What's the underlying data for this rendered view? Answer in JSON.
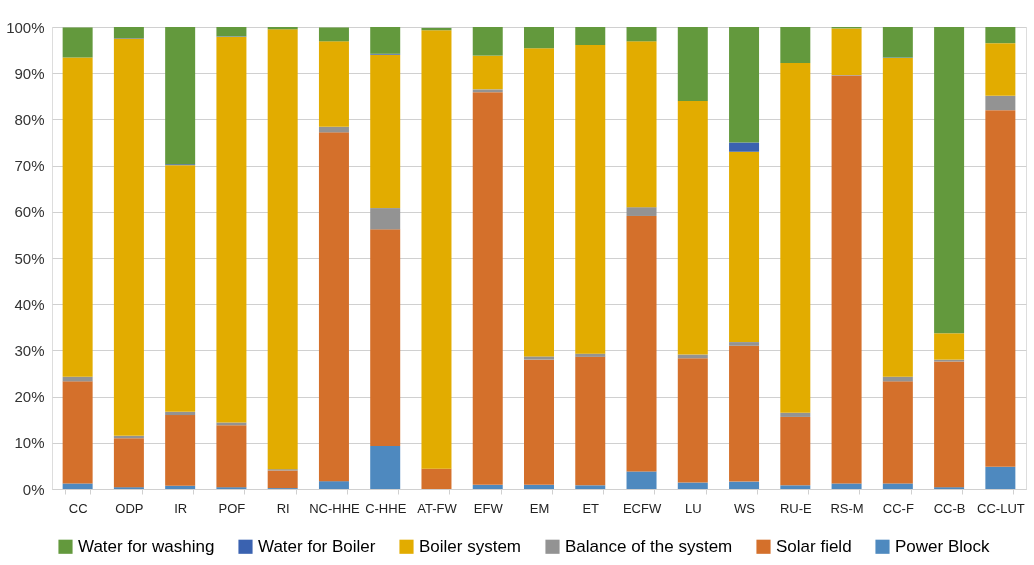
{
  "chart_data": {
    "type": "bar",
    "stacked": true,
    "categories": [
      "CC",
      "ODP",
      "IR",
      "POF",
      "RI",
      "NC-HHE",
      "C-HHE",
      "AT-FW",
      "EFW",
      "EM",
      "ET",
      "ECFW",
      "LU",
      "WS",
      "RU-E",
      "RS-M",
      "CC-F",
      "CC-B",
      "CC-LUT"
    ],
    "series": [
      {
        "name": "Power Block",
        "color": "#4e89bf",
        "values": [
          1.2,
          0.4,
          0.7,
          0.4,
          0.2,
          1.7,
          9.3,
          null,
          0.9,
          0.9,
          0.8,
          3.8,
          1.4,
          1.6,
          0.8,
          1.2,
          1.2,
          0.4,
          4.8
        ]
      },
      {
        "name": "Solar field",
        "color": "#d4702b",
        "values": [
          22.1,
          10.6,
          15.3,
          13.4,
          3.8,
          75.5,
          46.9,
          4.4,
          85.0,
          27.1,
          27.8,
          55.3,
          26.9,
          29.4,
          14.8,
          88.3,
          22.1,
          27.2,
          77.2
        ]
      },
      {
        "name": "Balance of the system",
        "color": "#939393",
        "values": [
          1.0,
          0.5,
          0.7,
          0.6,
          0.3,
          1.2,
          4.6,
          null,
          0.6,
          0.7,
          0.7,
          1.9,
          0.8,
          0.8,
          0.9,
          0.1,
          1.0,
          0.4,
          3.1
        ]
      },
      {
        "name": "Boiler system",
        "color": "#e2ac00",
        "values": [
          69.1,
          86.0,
          53.4,
          83.5,
          95.2,
          18.5,
          33.2,
          94.9,
          7.3,
          66.7,
          66.8,
          35.9,
          54.9,
          41.2,
          75.7,
          10.1,
          69.0,
          5.7,
          11.4
        ]
      },
      {
        "name": "Water for Boiler",
        "color": "#3a62b0",
        "values": [
          null,
          0.1,
          0.2,
          0.1,
          0,
          null,
          0.2,
          0,
          0,
          0,
          0,
          0,
          0,
          2.0,
          0,
          0,
          0.1,
          0,
          0
        ]
      },
      {
        "name": "Water for washing",
        "color": "#63993d",
        "values": [
          6.5,
          2.4,
          29.7,
          2.0,
          0.5,
          3.0,
          5.8,
          0.5,
          6.2,
          4.6,
          3.9,
          3.1,
          16.0,
          25.0,
          7.8,
          0.3,
          6.6,
          66.3,
          3.5
        ]
      }
    ],
    "ylim": [
      0,
      100
    ],
    "yticks": [
      {
        "value": 0,
        "label": "0%"
      },
      {
        "value": 10,
        "label": "10%"
      },
      {
        "value": 20,
        "label": "20%"
      },
      {
        "value": 30,
        "label": "30%"
      },
      {
        "value": 40,
        "label": "40%"
      },
      {
        "value": 50,
        "label": "50%"
      },
      {
        "value": 60,
        "label": "60%"
      },
      {
        "value": 70,
        "label": "70%"
      },
      {
        "value": 80,
        "label": "80%"
      },
      {
        "value": 90,
        "label": "90%"
      },
      {
        "value": 100,
        "label": "100%"
      }
    ],
    "grid": "y",
    "legend": "bottom"
  }
}
